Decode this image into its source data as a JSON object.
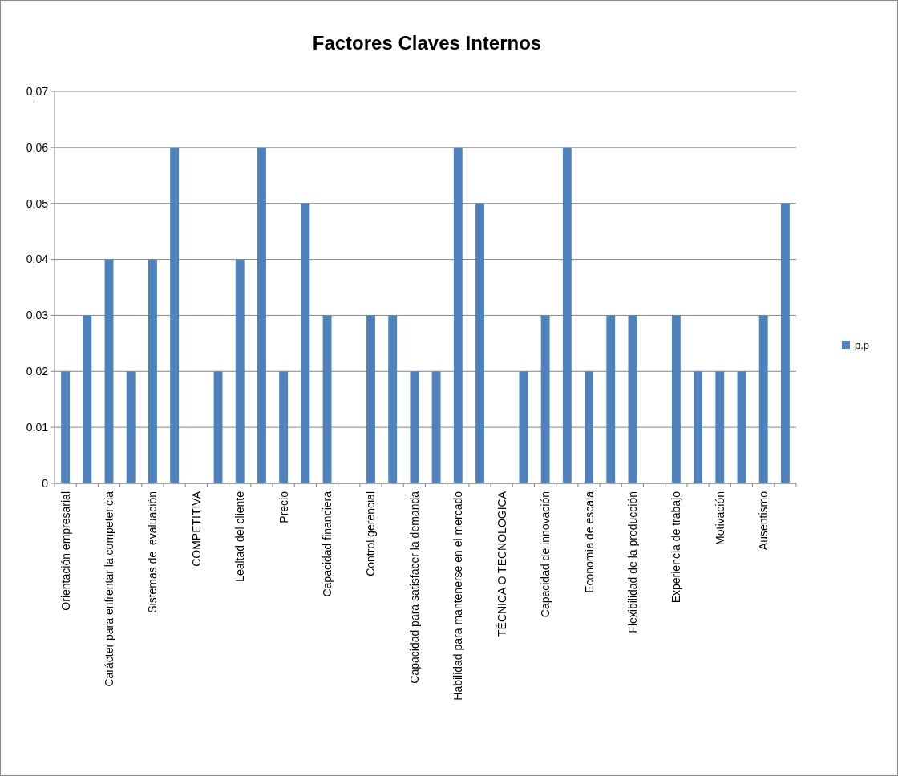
{
  "chart_data": {
    "type": "bar",
    "title": "Factores Claves Internos",
    "categories": [
      "Orientación empresarial",
      null,
      "Carácter para enfrentar la competencia",
      null,
      "Sistemas de  evaluación",
      null,
      "COMPETITIVA",
      null,
      "Lealtad del cliente",
      null,
      "Precio",
      null,
      "Capacidad financiera",
      null,
      "Control gerencial",
      null,
      "Capacidad para satisfacer la demanda",
      null,
      "Habilidad para mantenerse en el mercado",
      null,
      "TÉCNICA O TECNOLOGICA",
      null,
      "Capacidad de innovación",
      null,
      "Economía de escala",
      null,
      "Flexibilidad de la producción",
      null,
      "Experiencia de trabajo",
      null,
      "Motivación",
      null,
      "Ausentismo",
      null
    ],
    "series": [
      {
        "name": "p.p",
        "color": "#4f81bd",
        "values": [
          0.02,
          0.03,
          0.04,
          0.02,
          0.04,
          0.06,
          null,
          0.02,
          0.04,
          0.06,
          0.02,
          0.05,
          0.03,
          null,
          0.03,
          0.03,
          0.02,
          0.02,
          0.06,
          0.05,
          null,
          0.02,
          0.03,
          0.06,
          0.02,
          0.03,
          0.03,
          null,
          0.03,
          0.02,
          0.02,
          0.02,
          0.03,
          0.05
        ]
      }
    ],
    "ylim": [
      0,
      0.07
    ],
    "yticks": [
      0,
      {
        "value": 0.01,
        "label": "0,01"
      },
      {
        "value": 0.02,
        "label": "0,02"
      },
      {
        "value": 0.03,
        "label": "0,03"
      },
      {
        "value": 0.04,
        "label": "0,04"
      },
      {
        "value": 0.05,
        "label": "0,05"
      },
      {
        "value": 0.06,
        "label": "0,06"
      },
      {
        "value": 0.07,
        "label": "0,07"
      }
    ],
    "grid": "y",
    "legend": "right"
  }
}
